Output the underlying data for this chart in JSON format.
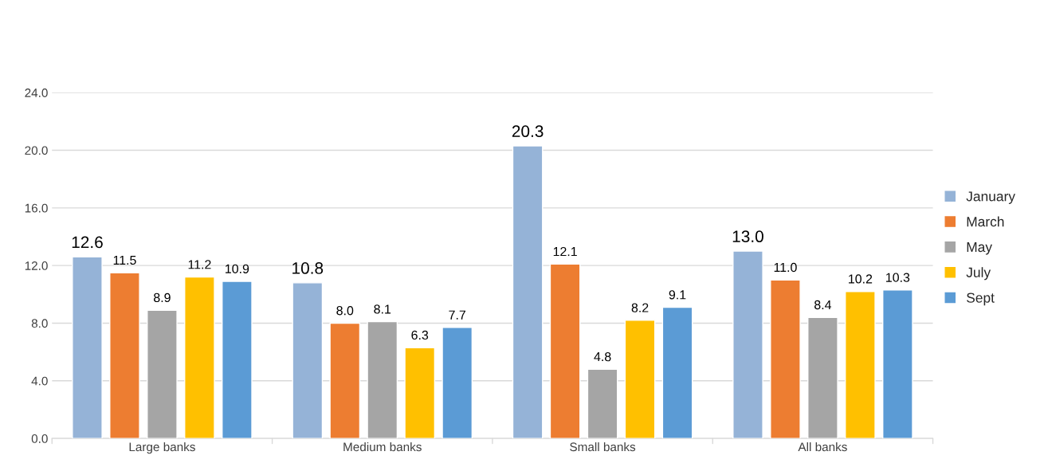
{
  "chart_data": {
    "type": "bar",
    "categories": [
      "Large banks",
      "Medium banks",
      "Small banks",
      "All banks"
    ],
    "series": [
      {
        "name": "January",
        "color": "#95b3d7",
        "values": [
          12.6,
          10.8,
          20.3,
          13.0
        ],
        "value_labels": [
          "12.6",
          "10.8",
          "20.3",
          "13.0"
        ]
      },
      {
        "name": "March",
        "color": "#ed7d31",
        "values": [
          11.5,
          8.0,
          12.1,
          11.0
        ],
        "value_labels": [
          "11.5",
          "8.0",
          "12.1",
          "11.0"
        ]
      },
      {
        "name": "May",
        "color": "#a5a5a5",
        "values": [
          8.9,
          8.1,
          4.8,
          8.4
        ],
        "value_labels": [
          "8.9",
          "8.1",
          "4.8",
          "8.4"
        ]
      },
      {
        "name": "July",
        "color": "#ffc000",
        "values": [
          11.2,
          6.3,
          8.2,
          10.2
        ],
        "value_labels": [
          "11.2",
          "6.3",
          "8.2",
          "10.2"
        ]
      },
      {
        "name": "Sept",
        "color": "#5b9bd5",
        "values": [
          10.9,
          7.7,
          9.1,
          10.3
        ],
        "value_labels": [
          "10.9",
          "7.7",
          "9.1",
          "10.3"
        ]
      }
    ],
    "ylim": [
      0,
      24
    ],
    "yticks": [
      {
        "value": 0,
        "label": "0.0"
      },
      {
        "value": 4,
        "label": "4.0"
      },
      {
        "value": 8,
        "label": "8.0"
      },
      {
        "value": 12,
        "label": "12.0"
      },
      {
        "value": 16,
        "label": "16.0"
      },
      {
        "value": 20,
        "label": "20.0"
      },
      {
        "value": 24,
        "label": "24.0"
      }
    ],
    "grid": "y",
    "legend": "right"
  }
}
